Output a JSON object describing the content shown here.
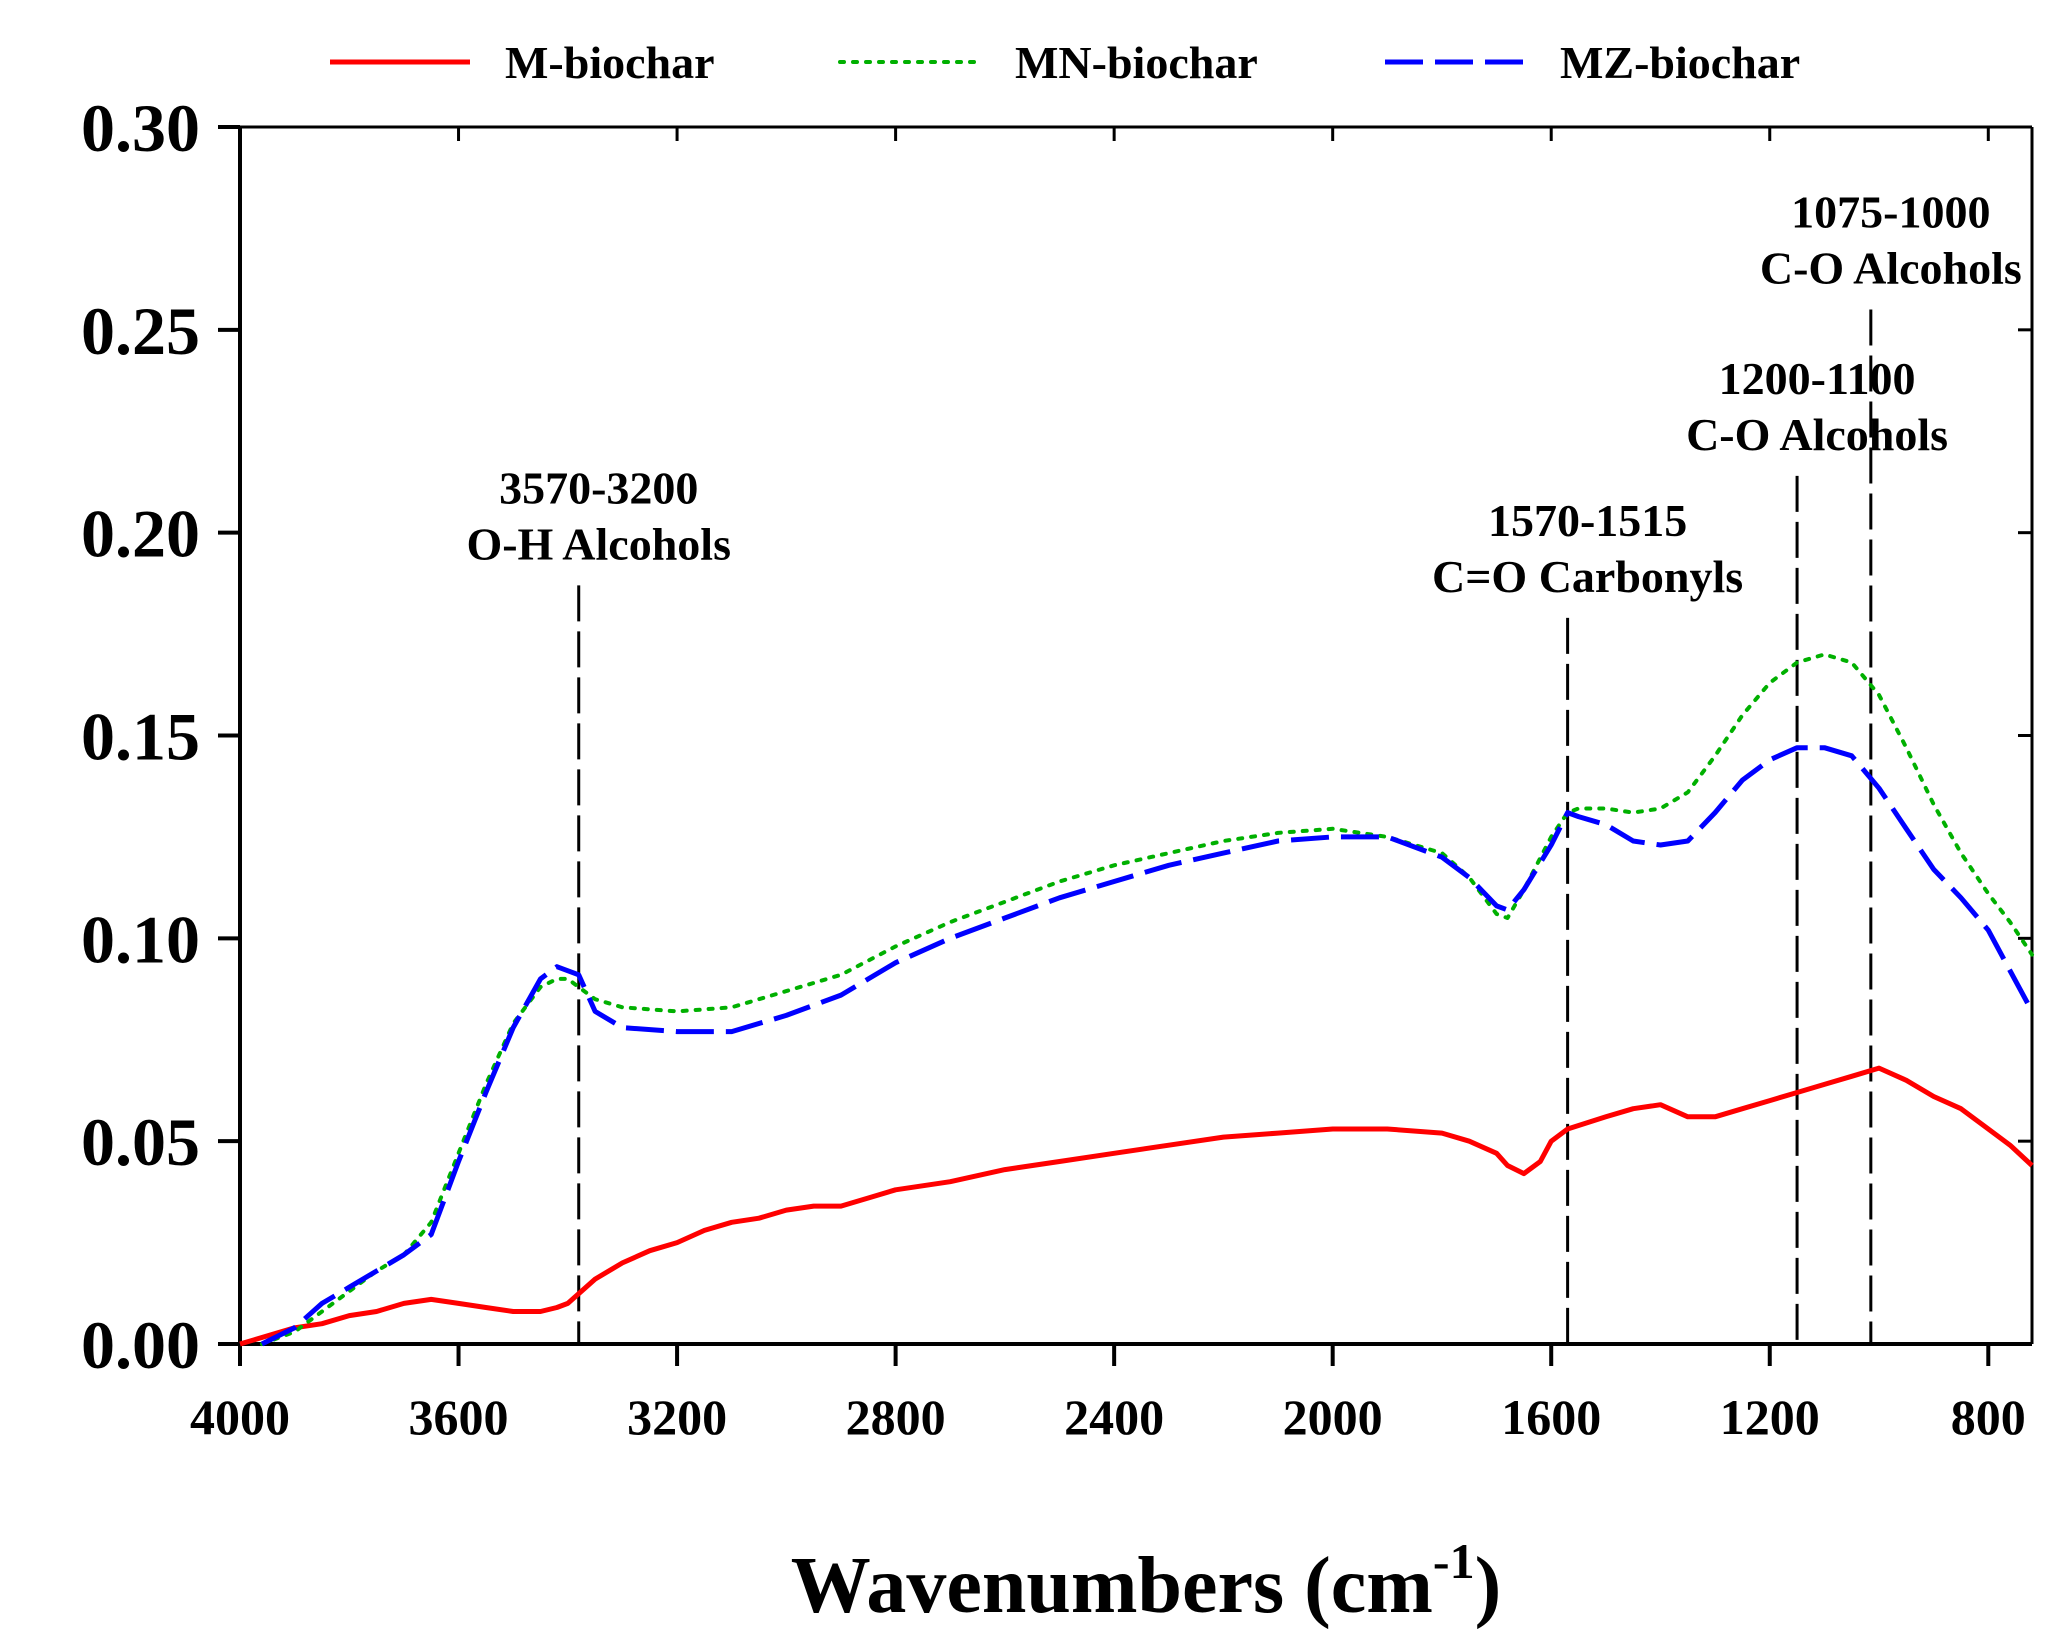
{
  "chart_data": {
    "type": "line",
    "title": "",
    "xlabel": "Wavenumbers (cm",
    "xlabel_sup": "-1",
    "xlabel_close": ")",
    "ylabel": "",
    "xlim": [
      4000,
      720
    ],
    "ylim": [
      0,
      0.3
    ],
    "x_ticks": [
      4000,
      3600,
      3200,
      2800,
      2400,
      2000,
      1600,
      1200,
      800
    ],
    "x_tick_labels": [
      "4000",
      "3600",
      "3200",
      "2800",
      "2400",
      "2000",
      "1600",
      "1200",
      "800"
    ],
    "y_ticks": [
      0.0,
      0.05,
      0.1,
      0.15,
      0.2,
      0.25,
      0.3
    ],
    "y_tick_labels": [
      "0.00",
      "0.05",
      "0.10",
      "0.15",
      "0.20",
      "0.25",
      "0.30"
    ],
    "grid": false,
    "legend_position": "top",
    "series": [
      {
        "name": "M-biochar",
        "color": "#ff0000",
        "style": "solid",
        "points": [
          [
            4000,
            0.0
          ],
          [
            3950,
            0.002
          ],
          [
            3900,
            0.004
          ],
          [
            3850,
            0.005
          ],
          [
            3800,
            0.007
          ],
          [
            3750,
            0.008
          ],
          [
            3700,
            0.01
          ],
          [
            3650,
            0.011
          ],
          [
            3600,
            0.01
          ],
          [
            3550,
            0.009
          ],
          [
            3500,
            0.008
          ],
          [
            3450,
            0.008
          ],
          [
            3420,
            0.009
          ],
          [
            3400,
            0.01
          ],
          [
            3350,
            0.016
          ],
          [
            3300,
            0.02
          ],
          [
            3250,
            0.023
          ],
          [
            3200,
            0.025
          ],
          [
            3150,
            0.028
          ],
          [
            3100,
            0.03
          ],
          [
            3050,
            0.031
          ],
          [
            3000,
            0.033
          ],
          [
            2950,
            0.034
          ],
          [
            2900,
            0.034
          ],
          [
            2850,
            0.036
          ],
          [
            2800,
            0.038
          ],
          [
            2700,
            0.04
          ],
          [
            2600,
            0.043
          ],
          [
            2500,
            0.045
          ],
          [
            2400,
            0.047
          ],
          [
            2300,
            0.049
          ],
          [
            2200,
            0.051
          ],
          [
            2100,
            0.052
          ],
          [
            2000,
            0.053
          ],
          [
            1900,
            0.053
          ],
          [
            1800,
            0.052
          ],
          [
            1750,
            0.05
          ],
          [
            1700,
            0.047
          ],
          [
            1680,
            0.044
          ],
          [
            1650,
            0.042
          ],
          [
            1620,
            0.045
          ],
          [
            1600,
            0.05
          ],
          [
            1570,
            0.053
          ],
          [
            1500,
            0.056
          ],
          [
            1450,
            0.058
          ],
          [
            1400,
            0.059
          ],
          [
            1350,
            0.056
          ],
          [
            1300,
            0.056
          ],
          [
            1250,
            0.058
          ],
          [
            1200,
            0.06
          ],
          [
            1150,
            0.062
          ],
          [
            1100,
            0.064
          ],
          [
            1050,
            0.066
          ],
          [
            1000,
            0.068
          ],
          [
            950,
            0.065
          ],
          [
            900,
            0.061
          ],
          [
            850,
            0.058
          ],
          [
            800,
            0.053
          ],
          [
            760,
            0.049
          ],
          [
            720,
            0.044
          ]
        ]
      },
      {
        "name": "MN-biochar",
        "color": "#00b000",
        "style": "dotted",
        "points": [
          [
            3960,
            0.0
          ],
          [
            3900,
            0.003
          ],
          [
            3850,
            0.008
          ],
          [
            3800,
            0.013
          ],
          [
            3750,
            0.018
          ],
          [
            3700,
            0.022
          ],
          [
            3650,
            0.03
          ],
          [
            3600,
            0.047
          ],
          [
            3550,
            0.064
          ],
          [
            3500,
            0.079
          ],
          [
            3450,
            0.088
          ],
          [
            3420,
            0.09
          ],
          [
            3400,
            0.09
          ],
          [
            3350,
            0.085
          ],
          [
            3300,
            0.083
          ],
          [
            3200,
            0.082
          ],
          [
            3100,
            0.083
          ],
          [
            3000,
            0.087
          ],
          [
            2900,
            0.091
          ],
          [
            2800,
            0.098
          ],
          [
            2700,
            0.104
          ],
          [
            2600,
            0.109
          ],
          [
            2500,
            0.114
          ],
          [
            2400,
            0.118
          ],
          [
            2300,
            0.121
          ],
          [
            2200,
            0.124
          ],
          [
            2100,
            0.126
          ],
          [
            2000,
            0.127
          ],
          [
            1900,
            0.125
          ],
          [
            1800,
            0.121
          ],
          [
            1750,
            0.115
          ],
          [
            1700,
            0.106
          ],
          [
            1680,
            0.105
          ],
          [
            1650,
            0.112
          ],
          [
            1600,
            0.125
          ],
          [
            1570,
            0.131
          ],
          [
            1550,
            0.132
          ],
          [
            1500,
            0.132
          ],
          [
            1450,
            0.131
          ],
          [
            1400,
            0.132
          ],
          [
            1350,
            0.136
          ],
          [
            1300,
            0.145
          ],
          [
            1250,
            0.155
          ],
          [
            1200,
            0.163
          ],
          [
            1150,
            0.168
          ],
          [
            1100,
            0.17
          ],
          [
            1050,
            0.168
          ],
          [
            1000,
            0.16
          ],
          [
            950,
            0.147
          ],
          [
            900,
            0.133
          ],
          [
            850,
            0.121
          ],
          [
            800,
            0.111
          ],
          [
            760,
            0.104
          ],
          [
            720,
            0.096
          ]
        ]
      },
      {
        "name": "MZ-biochar",
        "color": "#0000ff",
        "style": "dashed",
        "points": [
          [
            3960,
            0.0
          ],
          [
            3900,
            0.004
          ],
          [
            3850,
            0.01
          ],
          [
            3800,
            0.014
          ],
          [
            3750,
            0.018
          ],
          [
            3700,
            0.022
          ],
          [
            3650,
            0.027
          ],
          [
            3600,
            0.045
          ],
          [
            3550,
            0.062
          ],
          [
            3500,
            0.078
          ],
          [
            3450,
            0.09
          ],
          [
            3420,
            0.093
          ],
          [
            3380,
            0.091
          ],
          [
            3350,
            0.082
          ],
          [
            3300,
            0.078
          ],
          [
            3200,
            0.077
          ],
          [
            3100,
            0.077
          ],
          [
            3000,
            0.081
          ],
          [
            2900,
            0.086
          ],
          [
            2800,
            0.094
          ],
          [
            2700,
            0.1
          ],
          [
            2600,
            0.105
          ],
          [
            2500,
            0.11
          ],
          [
            2400,
            0.114
          ],
          [
            2300,
            0.118
          ],
          [
            2200,
            0.121
          ],
          [
            2100,
            0.124
          ],
          [
            2000,
            0.125
          ],
          [
            1900,
            0.125
          ],
          [
            1800,
            0.12
          ],
          [
            1750,
            0.115
          ],
          [
            1700,
            0.108
          ],
          [
            1680,
            0.107
          ],
          [
            1650,
            0.112
          ],
          [
            1600,
            0.123
          ],
          [
            1570,
            0.131
          ],
          [
            1550,
            0.13
          ],
          [
            1500,
            0.128
          ],
          [
            1450,
            0.124
          ],
          [
            1400,
            0.123
          ],
          [
            1350,
            0.124
          ],
          [
            1300,
            0.131
          ],
          [
            1250,
            0.139
          ],
          [
            1200,
            0.144
          ],
          [
            1150,
            0.147
          ],
          [
            1100,
            0.147
          ],
          [
            1050,
            0.145
          ],
          [
            1000,
            0.137
          ],
          [
            950,
            0.127
          ],
          [
            900,
            0.117
          ],
          [
            850,
            0.11
          ],
          [
            800,
            0.102
          ],
          [
            760,
            0.092
          ],
          [
            720,
            0.082
          ]
        ]
      }
    ],
    "annotations": [
      {
        "x": 3380,
        "range": "3570-3200",
        "label": "O-H Alcohols",
        "line_top_y": 0.187
      },
      {
        "x": 1570,
        "range": "1570-1515",
        "label": "C=O Carbonyls",
        "line_top_y": 0.179
      },
      {
        "x": 1150,
        "range": "1200-1100",
        "label": "C-O Alcohols",
        "line_top_y": 0.214
      },
      {
        "x": 1015,
        "range": "1075-1000",
        "label": "C-O Alcohols",
        "line_top_y": 0.255
      }
    ]
  }
}
